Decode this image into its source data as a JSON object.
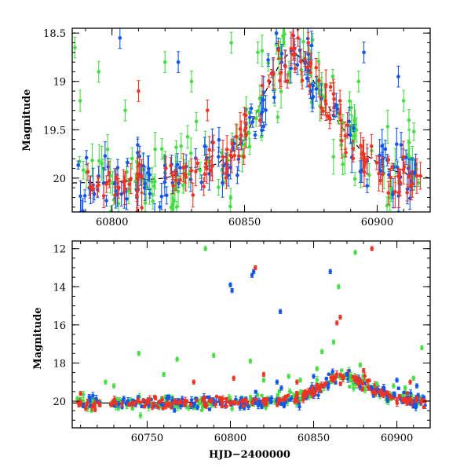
{
  "chart_data": [
    {
      "type": "scatter",
      "panel": "top",
      "title": "",
      "xlabel": "",
      "ylabel": "Magnitude",
      "xlim": [
        60785,
        60920
      ],
      "ylim": [
        20.35,
        18.45
      ],
      "y_inverted": true,
      "xticks": [
        60800,
        60850,
        60900
      ],
      "xtick_labels": [
        "60800",
        "60850",
        "60900"
      ],
      "yticks": [
        18.5,
        19,
        19.5,
        20
      ],
      "ytick_labels": [
        "18.5",
        "19",
        "19.5",
        "20"
      ],
      "grid": false,
      "legend": "none",
      "series_colors": {
        "green": "#44dd44",
        "blue": "#1155ee",
        "red": "#ee3322",
        "model": "#000000"
      },
      "model_curve": {
        "style": "dashed",
        "x": [
          60785,
          60800,
          60820,
          60840,
          60850,
          60858,
          60864,
          60868,
          60872,
          60878,
          60886,
          60895,
          60905,
          60920
        ],
        "y": [
          20.05,
          20.04,
          20.0,
          19.85,
          19.6,
          19.1,
          18.78,
          18.68,
          18.78,
          19.1,
          19.45,
          19.75,
          19.92,
          20.0
        ]
      },
      "envelope": {
        "x": [
          60785,
          60800,
          60820,
          60835,
          60845,
          60852,
          60858,
          60864,
          60868,
          60872,
          60878,
          60884,
          60890,
          60896,
          60905,
          60915
        ],
        "y": [
          20.05,
          20.04,
          20.0,
          19.9,
          19.75,
          19.5,
          19.1,
          18.8,
          18.7,
          18.8,
          19.05,
          19.35,
          19.6,
          19.8,
          19.95,
          20.0
        ]
      },
      "scatter_amplitude": {
        "green": 0.35,
        "blue": 0.25,
        "red": 0.2
      },
      "outliers": {
        "green": [
          [
            60786,
            18.65
          ],
          [
            60788,
            19.2
          ],
          [
            60795,
            18.9
          ],
          [
            60805,
            19.3
          ],
          [
            60820,
            18.8
          ],
          [
            60830,
            19.0
          ],
          [
            60845,
            18.6
          ],
          [
            60855,
            18.7
          ],
          [
            60893,
            19.0
          ],
          [
            60910,
            19.2
          ],
          [
            60912,
            19.4
          ]
        ],
        "blue": [
          [
            60803,
            18.55
          ],
          [
            60825,
            18.8
          ],
          [
            60862,
            18.5
          ],
          [
            60895,
            18.7
          ],
          [
            60908,
            18.95
          ]
        ],
        "red": [
          [
            60810,
            19.1
          ],
          [
            60836,
            19.3
          ],
          [
            60874,
            18.6
          ],
          [
            60886,
            19.2
          ]
        ]
      }
    },
    {
      "type": "scatter",
      "panel": "bottom",
      "title": "",
      "xlabel": "HJD−2400000",
      "ylabel": "Magnitude",
      "xlim": [
        60705,
        60920
      ],
      "ylim": [
        21.4,
        11.6
      ],
      "y_inverted": true,
      "xticks": [
        60750,
        60800,
        60850,
        60900
      ],
      "xtick_labels": [
        "60750",
        "60800",
        "60850",
        "60900"
      ],
      "yticks": [
        12,
        14,
        16,
        18,
        20
      ],
      "ytick_labels": [
        "12",
        "14",
        "16",
        "18",
        "20"
      ],
      "grid": false,
      "legend": "none",
      "series_colors": {
        "green": "#44dd44",
        "blue": "#1155ee",
        "red": "#ee3322",
        "model": "#000000"
      },
      "model_curve": {
        "style": "solid",
        "x": [
          60705,
          60730,
          60780,
          60830,
          60845,
          60855,
          60862,
          60868,
          60874,
          60882,
          60895,
          60905,
          60920
        ],
        "y": [
          20.1,
          20.1,
          20.05,
          20.0,
          19.8,
          19.2,
          18.8,
          18.6,
          18.8,
          19.2,
          19.7,
          19.95,
          20.0
        ]
      },
      "envelope": {
        "x": [
          60705,
          60730,
          60760,
          60790,
          60820,
          60840,
          60850,
          60858,
          60864,
          60868,
          60872,
          60880,
          60890,
          60900,
          60915
        ],
        "y": [
          20.1,
          20.1,
          20.08,
          20.05,
          20.0,
          19.85,
          19.5,
          19.0,
          18.75,
          18.65,
          18.75,
          19.1,
          19.55,
          19.85,
          20.0
        ]
      },
      "scatter_amplitude": {
        "green": 0.35,
        "blue": 0.3,
        "red": 0.25
      },
      "outliers": {
        "green": [
          [
            60785,
            12.0
          ],
          [
            60875,
            12.2
          ],
          [
            60862,
            16.9
          ],
          [
            60855,
            17.4
          ],
          [
            60865,
            14.0
          ],
          [
            60745,
            17.5
          ],
          [
            60768,
            17.8
          ],
          [
            60790,
            17.6
          ],
          [
            60812,
            17.9
          ],
          [
            60852,
            18.3
          ],
          [
            60878,
            18.1
          ],
          [
            60915,
            17.2
          ],
          [
            60910,
            18.8
          ],
          [
            60725,
            19.0
          ],
          [
            60730,
            19.2
          ],
          [
            60760,
            18.6
          ],
          [
            60820,
            18.9
          ],
          [
            60835,
            18.7
          ],
          [
            60842,
            18.9
          ],
          [
            60872,
            18.9
          ],
          [
            60888,
            19.1
          ],
          [
            60898,
            19.2
          ],
          [
            60905,
            19.3
          ]
        ],
        "blue": [
          [
            60800,
            13.9
          ],
          [
            60801,
            14.2
          ],
          [
            60813,
            13.4
          ],
          [
            60814,
            13.2
          ],
          [
            60830,
            15.3
          ],
          [
            60860,
            13.2
          ],
          [
            60828,
            19.0
          ],
          [
            60850,
            18.7
          ],
          [
            60870,
            18.6
          ],
          [
            60885,
            19.3
          ],
          [
            60900,
            18.9
          ],
          [
            60912,
            19.2
          ]
        ],
        "red": [
          [
            60815,
            13.0
          ],
          [
            60864,
            15.9
          ],
          [
            60866,
            15.6
          ],
          [
            60885,
            12.0
          ],
          [
            60710,
            19.6
          ],
          [
            60778,
            19.0
          ],
          [
            60820,
            18.6
          ],
          [
            60840,
            19.0
          ],
          [
            60880,
            18.4
          ],
          [
            60908,
            19.0
          ],
          [
            60802,
            18.8
          ]
        ]
      }
    }
  ]
}
